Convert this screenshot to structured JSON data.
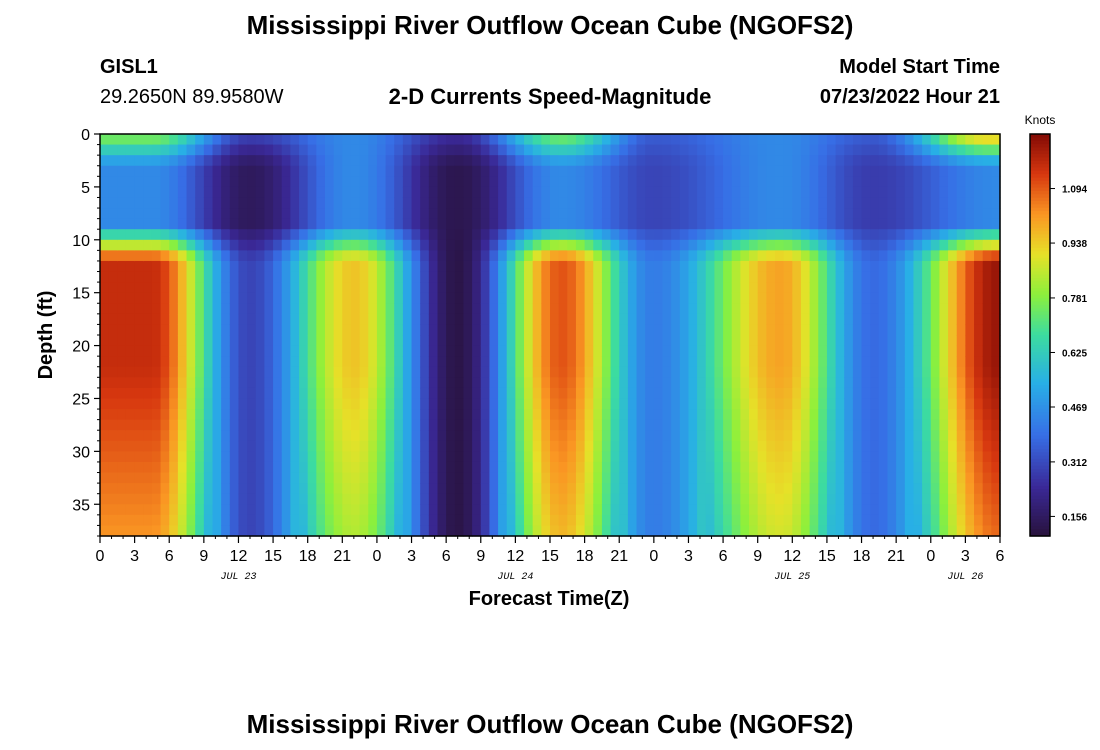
{
  "header": {
    "title": "Mississippi River Outflow Ocean Cube (NGOFS2)",
    "station": "GISL1",
    "coords": "29.2650N  89.9580W",
    "subtitle": "2-D Currents Speed-Magnitude",
    "start_label": "Model Start Time",
    "start_value": "07/23/2022 Hour 21"
  },
  "footer": {
    "title": "Mississippi River Outflow Ocean Cube (NGOFS2)"
  },
  "chart_data": {
    "type": "heatmap",
    "title": "2-D Currents Speed-Magnitude",
    "xlabel": "Forecast Time(Z)",
    "ylabel": "Depth (ft)",
    "x_range_hours": [
      0,
      78
    ],
    "x_tick_labels": [
      "0",
      "3",
      "6",
      "9",
      "12",
      "15",
      "18",
      "21",
      "0",
      "3",
      "6",
      "9",
      "12",
      "15",
      "18",
      "21",
      "0",
      "3",
      "6",
      "9",
      "12",
      "15",
      "18",
      "21",
      "0",
      "3",
      "6"
    ],
    "date_labels": [
      {
        "label": "JUL 23",
        "hour": 12
      },
      {
        "label": "JUL 24",
        "hour": 36
      },
      {
        "label": "JUL 25",
        "hour": 60
      },
      {
        "label": "JUL 26",
        "hour": 75
      }
    ],
    "ylim": [
      0,
      38
    ],
    "y_inverted": true,
    "y_ticks": [
      0,
      5,
      10,
      15,
      20,
      25,
      30,
      35
    ],
    "colorbar": {
      "title": "Knots",
      "min": 0.1,
      "max": 1.25,
      "ticks": [
        0.156,
        0.312,
        0.469,
        0.625,
        0.781,
        0.938,
        1.094
      ],
      "tick_labels": [
        "0.156",
        "0.312",
        "0.469",
        "0.625",
        "0.781",
        "0.938",
        "1.094"
      ]
    },
    "surface_layer_depth_range_ft": [
      0,
      3
    ],
    "mid_layer_depth_range_ft": [
      3,
      8
    ],
    "deep_layer_depth_range_ft": [
      10,
      38
    ],
    "deep_peaks": [
      {
        "hour": 4.5,
        "value": 1.16
      },
      {
        "hour": 22,
        "value": 0.95
      },
      {
        "hour": 40,
        "value": 1.1
      },
      {
        "hour": 59,
        "value": 1.0
      },
      {
        "hour": 78,
        "value": 1.22
      }
    ],
    "deep_minima": [
      {
        "hour": 13,
        "value": 0.3
      },
      {
        "hour": 31,
        "value": 0.12
      },
      {
        "hour": 48,
        "value": 0.42
      },
      {
        "hour": 67,
        "value": 0.38
      }
    ],
    "mid_minima": [
      {
        "hour": 13,
        "value": 0.15
      },
      {
        "hour": 31,
        "value": 0.13
      },
      {
        "hour": 48,
        "value": 0.3
      },
      {
        "hour": 67,
        "value": 0.28
      }
    ],
    "surface_peaks": [
      {
        "hour": 4.5,
        "value": 0.8
      },
      {
        "hour": 40,
        "value": 0.78
      },
      {
        "hour": 77,
        "value": 1.0
      }
    ]
  }
}
